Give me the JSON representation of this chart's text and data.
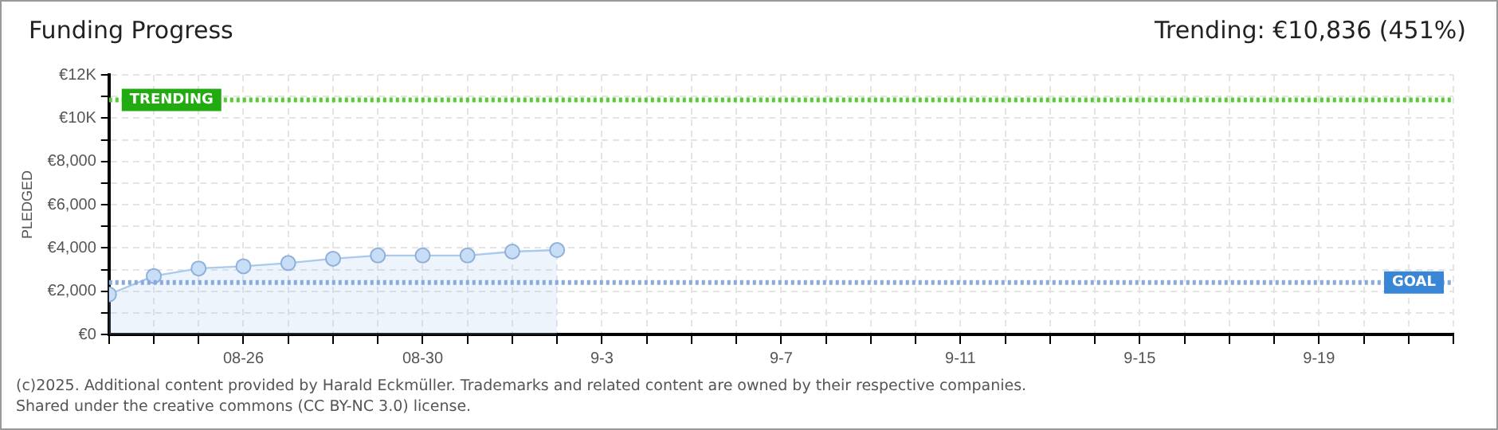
{
  "chart_data": {
    "type": "area",
    "title": "Funding Progress",
    "ylabel": "PLEDGED",
    "annotations": [
      "Trending: €10,836 (451%)",
      "(c)2025. Additional content provided by Harald Eckmüller. Trademarks and related content are owned by their respective companies.",
      "Shared under the creative commons (CC BY-NC 3.0) license."
    ],
    "x": [
      "--08-23",
      "--08-24",
      "--08-25",
      "--08-26",
      "--08-27",
      "--08-28",
      "--08-29",
      "--08-30",
      "--08-31",
      "--09-01",
      "--09-02"
    ],
    "series": [
      {
        "color": "#a9c9ee",
        "values": [
          1850,
          2700,
          3050,
          3150,
          3300,
          3500,
          3650,
          3650,
          3650,
          3830,
          3900
        ]
      }
    ],
    "xlim": [
      "--08-23",
      "--09-22"
    ],
    "xticks": [
      {
        "value": "--08-23",
        "label": null
      },
      {
        "value": "--08-24",
        "label": null
      },
      {
        "value": "--08-25",
        "label": null
      },
      {
        "value": "--08-26",
        "label": "08-26"
      },
      {
        "value": "--08-27",
        "label": null
      },
      {
        "value": "--08-28",
        "label": null
      },
      {
        "value": "--08-29",
        "label": null
      },
      {
        "value": "--08-30",
        "label": "08-30"
      },
      {
        "value": "--08-31",
        "label": null
      },
      {
        "value": "--09-01",
        "label": null
      },
      {
        "value": "--09-02",
        "label": null
      },
      {
        "value": "--09-03",
        "label": "9-3"
      },
      {
        "value": "--09-04",
        "label": null
      },
      {
        "value": "--09-05",
        "label": null
      },
      {
        "value": "--09-06",
        "label": null
      },
      {
        "value": "--09-07",
        "label": "9-7"
      },
      {
        "value": "--09-08",
        "label": null
      },
      {
        "value": "--09-09",
        "label": null
      },
      {
        "value": "--09-10",
        "label": null
      },
      {
        "value": "--09-11",
        "label": "9-11"
      },
      {
        "value": "--09-12",
        "label": null
      },
      {
        "value": "--09-13",
        "label": null
      },
      {
        "value": "--09-14",
        "label": null
      },
      {
        "value": "--09-15",
        "label": "9-15"
      },
      {
        "value": "--09-16",
        "label": null
      },
      {
        "value": "--09-17",
        "label": null
      },
      {
        "value": "--09-18",
        "label": null
      },
      {
        "value": "--09-19",
        "label": "9-19"
      },
      {
        "value": "--09-20",
        "label": null
      },
      {
        "value": "--09-21",
        "label": null
      },
      {
        "value": "--09-22",
        "label": null
      }
    ],
    "ylim": [
      0,
      12000
    ],
    "yticks": [
      {
        "value": 0,
        "label": "€0"
      },
      {
        "value": 1000,
        "label": null
      },
      {
        "value": 2000,
        "label": "€2,000"
      },
      {
        "value": 3000,
        "label": null
      },
      {
        "value": 4000,
        "label": "€4,000"
      },
      {
        "value": 5000,
        "label": null
      },
      {
        "value": 6000,
        "label": "€6,000"
      },
      {
        "value": 7000,
        "label": null
      },
      {
        "value": 8000,
        "label": "€8,000"
      },
      {
        "value": 9000,
        "label": null
      },
      {
        "value": 10000,
        "label": "€10K"
      },
      {
        "value": 11000,
        "label": null
      },
      {
        "value": 12000,
        "label": "€12K"
      }
    ],
    "ref_lines": [
      {
        "axis": "y",
        "value": 10836,
        "label": "TRENDING",
        "color": "#55cc33",
        "line_style": "dotted"
      },
      {
        "axis": "y",
        "value": 2400,
        "label": "GOAL",
        "color": "#88aadd",
        "line_style": "dotted"
      }
    ],
    "grid": true,
    "legend": false,
    "marker": "circle",
    "line_style": "solid"
  }
}
